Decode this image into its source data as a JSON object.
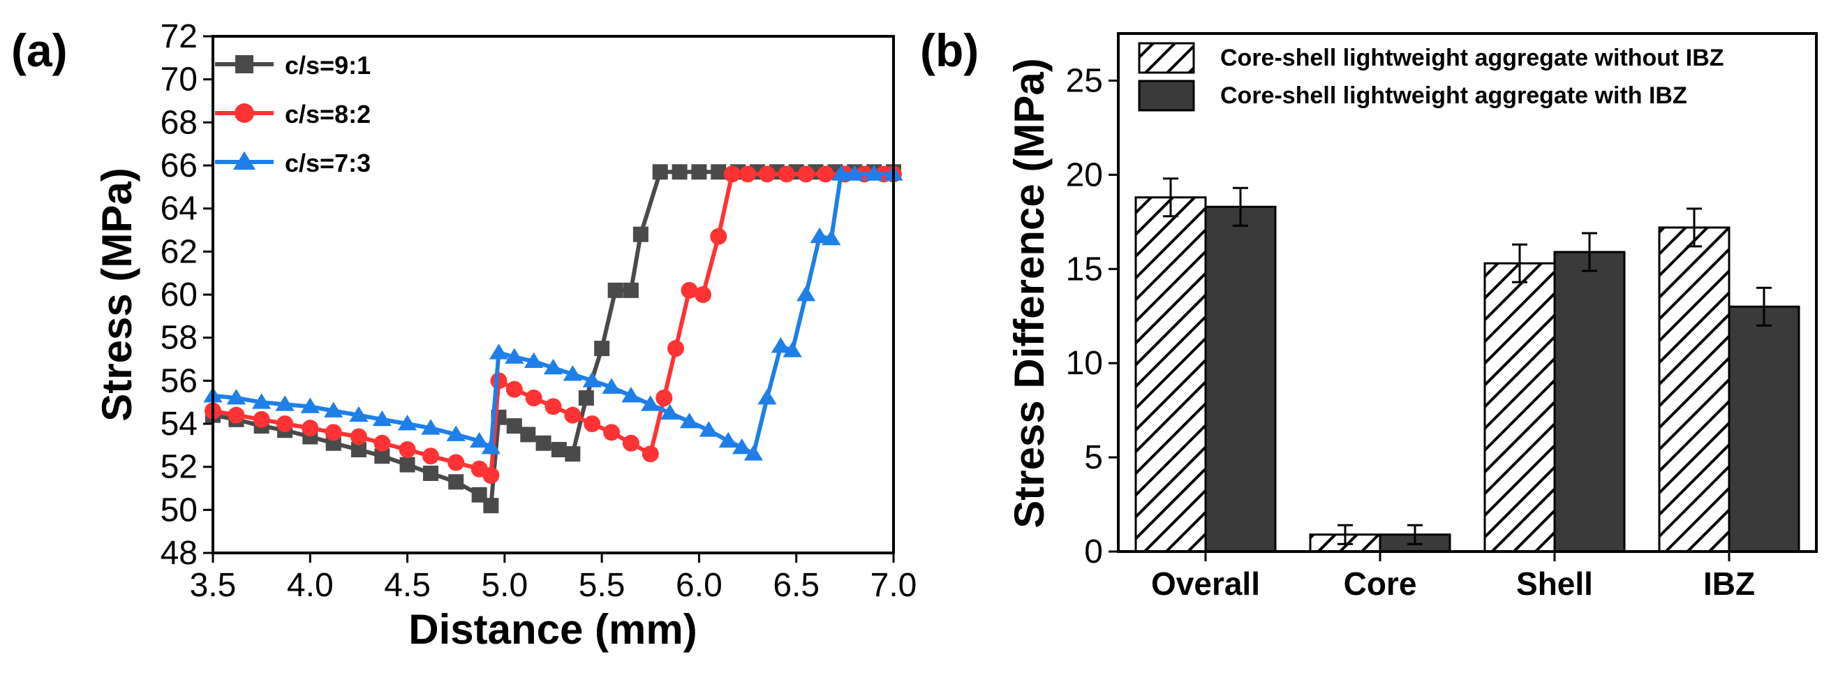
{
  "panels": {
    "a_label": "(a)",
    "b_label": "(b)"
  },
  "chart_data": [
    {
      "id": "a",
      "type": "line",
      "xlabel": "Distance (mm)",
      "ylabel": "Stress (MPa)",
      "xlim": [
        3.5,
        7.0
      ],
      "ylim": [
        48,
        72
      ],
      "xticks": [
        3.5,
        4.0,
        4.5,
        5.0,
        5.5,
        6.0,
        6.5,
        7.0
      ],
      "xtick_labels": [
        "3.5",
        "4.0",
        "4.5",
        "5.0",
        "5.5",
        "6.0",
        "6.5",
        "7.0"
      ],
      "yticks": [
        48,
        50,
        52,
        54,
        56,
        58,
        60,
        62,
        64,
        66,
        68,
        70,
        72
      ],
      "ytick_labels": [
        "48",
        "50",
        "52",
        "54",
        "56",
        "58",
        "60",
        "62",
        "64",
        "66",
        "68",
        "70",
        "72"
      ],
      "legend_position": "top-left",
      "series": [
        {
          "name": "c/s=9:1",
          "color": "#4a4a4a",
          "marker": "square",
          "x": [
            3.5,
            3.62,
            3.75,
            3.87,
            4.0,
            4.12,
            4.25,
            4.37,
            4.5,
            4.62,
            4.75,
            4.87,
            4.93,
            4.97,
            5.05,
            5.12,
            5.2,
            5.28,
            5.35,
            5.42,
            5.5,
            5.57,
            5.65,
            5.7,
            5.8,
            5.9,
            6.0,
            6.1,
            6.2,
            6.3,
            6.4,
            6.5,
            6.6,
            6.7,
            6.8,
            6.9,
            7.0
          ],
          "y": [
            54.4,
            54.2,
            53.9,
            53.7,
            53.4,
            53.1,
            52.8,
            52.5,
            52.1,
            51.7,
            51.3,
            50.7,
            50.2,
            54.3,
            53.9,
            53.5,
            53.1,
            52.8,
            52.6,
            55.2,
            57.5,
            60.2,
            60.2,
            62.8,
            65.7,
            65.7,
            65.7,
            65.7,
            65.7,
            65.7,
            65.7,
            65.7,
            65.7,
            65.7,
            65.7,
            65.7,
            65.7
          ]
        },
        {
          "name": "c/s=8:2",
          "color": "#ff3333",
          "marker": "circle",
          "x": [
            3.5,
            3.62,
            3.75,
            3.87,
            4.0,
            4.12,
            4.25,
            4.37,
            4.5,
            4.62,
            4.75,
            4.87,
            4.93,
            4.97,
            5.05,
            5.15,
            5.25,
            5.35,
            5.45,
            5.55,
            5.65,
            5.75,
            5.82,
            5.88,
            5.95,
            6.02,
            6.1,
            6.17,
            6.25,
            6.35,
            6.45,
            6.55,
            6.65,
            6.75,
            6.85,
            6.95,
            7.0
          ],
          "y": [
            54.6,
            54.4,
            54.2,
            54.0,
            53.8,
            53.6,
            53.4,
            53.1,
            52.8,
            52.5,
            52.2,
            51.9,
            51.6,
            56.0,
            55.6,
            55.2,
            54.8,
            54.4,
            54.0,
            53.6,
            53.1,
            52.6,
            55.2,
            57.5,
            60.2,
            60.0,
            62.7,
            65.6,
            65.6,
            65.6,
            65.6,
            65.6,
            65.6,
            65.6,
            65.6,
            65.6,
            65.6
          ]
        },
        {
          "name": "c/s=7:3",
          "color": "#1e7fe8",
          "marker": "triangle",
          "x": [
            3.5,
            3.62,
            3.75,
            3.87,
            4.0,
            4.12,
            4.25,
            4.37,
            4.5,
            4.62,
            4.75,
            4.87,
            4.93,
            4.97,
            5.05,
            5.15,
            5.25,
            5.35,
            5.45,
            5.55,
            5.65,
            5.75,
            5.85,
            5.95,
            6.05,
            6.15,
            6.22,
            6.28,
            6.35,
            6.42,
            6.48,
            6.55,
            6.62,
            6.68,
            6.73,
            6.8,
            6.9,
            7.0
          ],
          "y": [
            55.3,
            55.2,
            55.0,
            54.9,
            54.8,
            54.6,
            54.4,
            54.2,
            54.0,
            53.8,
            53.5,
            53.2,
            52.9,
            57.3,
            57.1,
            56.9,
            56.6,
            56.3,
            56.0,
            55.7,
            55.3,
            54.9,
            54.5,
            54.1,
            53.7,
            53.2,
            52.9,
            52.6,
            55.2,
            57.6,
            57.4,
            60.0,
            62.7,
            62.6,
            65.6,
            65.6,
            65.6,
            65.6
          ]
        }
      ]
    },
    {
      "id": "b",
      "type": "bar",
      "ylabel": "Stress Difference (MPa)",
      "xlabel": "",
      "ylim": [
        0,
        27.5
      ],
      "yticks": [
        0,
        5,
        10,
        15,
        20,
        25
      ],
      "ytick_labels": [
        "0",
        "5",
        "10",
        "15",
        "20",
        "25"
      ],
      "categories": [
        "Overall",
        "Core",
        "Shell",
        "IBZ"
      ],
      "legend_position": "top",
      "series": [
        {
          "name": "Core-shell lightweight aggregate without IBZ",
          "pattern": "hatched",
          "values": [
            18.8,
            0.9,
            15.3,
            17.2
          ],
          "errors": [
            1.0,
            0.5,
            1.0,
            1.0
          ]
        },
        {
          "name": "Core-shell lightweight aggregate with IBZ",
          "pattern": "solid",
          "color": "#3a3a3a",
          "values": [
            18.3,
            0.9,
            15.9,
            13.0
          ],
          "errors": [
            1.0,
            0.5,
            1.0,
            1.0
          ]
        }
      ]
    }
  ]
}
